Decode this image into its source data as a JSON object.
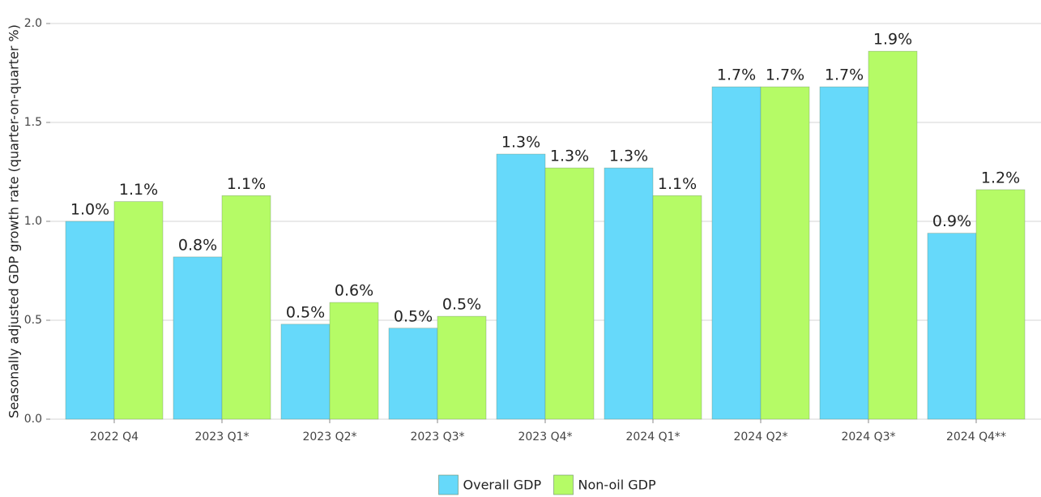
{
  "chart_data": {
    "type": "bar",
    "y_label": "Seasonally adjusted GDP growth rate (quarter-on-quarter %)",
    "categories": [
      "2022 Q4",
      "2023 Q1*",
      "2023 Q2*",
      "2023 Q3*",
      "2023 Q4*",
      "2024 Q1*",
      "2024 Q2*",
      "2024 Q3*",
      "2024 Q4**"
    ],
    "series": [
      {
        "name": "Overall GDP",
        "color": "#66d9fa",
        "values": [
          1.0,
          0.82,
          0.48,
          0.46,
          1.34,
          1.27,
          1.68,
          1.68,
          0.94
        ],
        "value_labels": [
          "1.0%",
          "0.8%",
          "0.5%",
          "0.5%",
          "1.3%",
          "1.3%",
          "1.7%",
          "1.7%",
          "0.9%"
        ]
      },
      {
        "name": "Non-oil GDP",
        "color": "#b5fb66",
        "values": [
          1.1,
          1.13,
          0.59,
          0.52,
          1.27,
          1.13,
          1.68,
          1.86,
          1.16
        ],
        "value_labels": [
          "1.1%",
          "1.1%",
          "0.6%",
          "0.5%",
          "1.3%",
          "1.1%",
          "1.7%",
          "1.9%",
          "1.2%"
        ]
      }
    ],
    "ylim": [
      0,
      2.0
    ],
    "yticks": [
      {
        "value": 0,
        "label": "0.0"
      },
      0.5,
      {
        "value": 1,
        "label": "1.0"
      },
      1.5,
      {
        "value": 2,
        "label": "2.0"
      }
    ],
    "grid": true,
    "legend": "bottom"
  }
}
